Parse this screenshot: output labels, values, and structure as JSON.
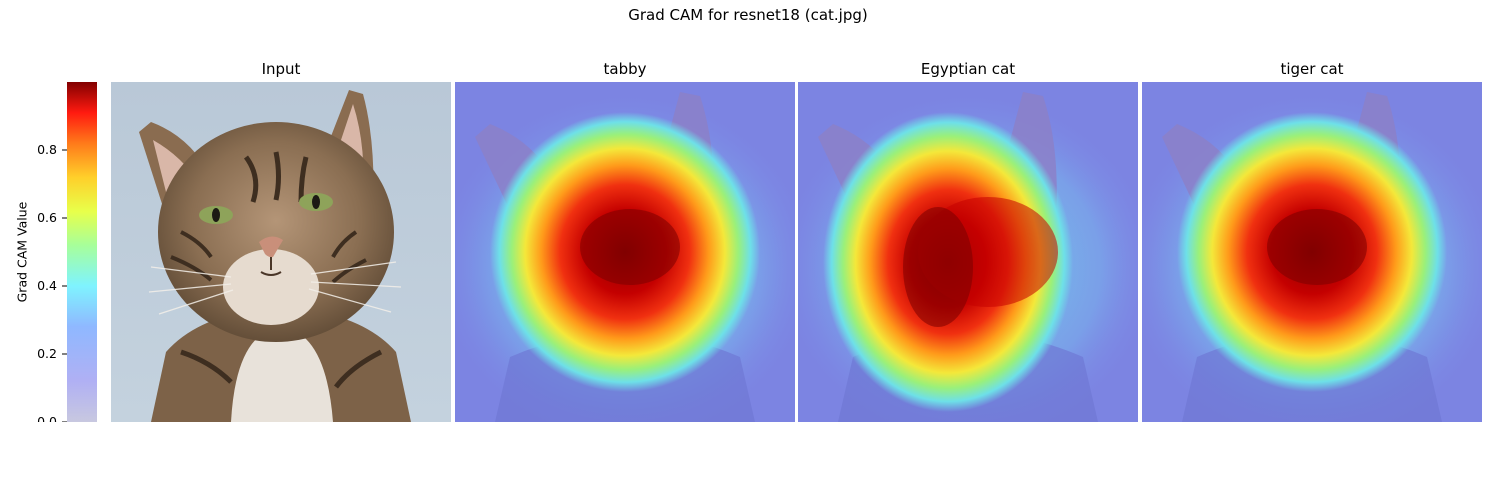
{
  "figure": {
    "title": "Grad CAM for resnet18 (cat.jpg)"
  },
  "panels": [
    {
      "title": "Input",
      "kind": "input"
    },
    {
      "title": "tabby",
      "kind": "cam",
      "hotspot": "round"
    },
    {
      "title": "Egyptian cat",
      "kind": "cam",
      "hotspot": "tall"
    },
    {
      "title": "tiger cat",
      "kind": "cam",
      "hotspot": "round"
    }
  ],
  "colorbar": {
    "label": "Grad CAM Value",
    "ticks": [
      "0.0",
      "0.2",
      "0.4",
      "0.6",
      "0.8"
    ],
    "tick_values": [
      0.0,
      0.2,
      0.4,
      0.6,
      0.8
    ],
    "range": [
      0.0,
      1.0
    ],
    "colormap": "jet"
  },
  "chart_data": {
    "type": "heatmap",
    "title": "Grad CAM for resnet18 (cat.jpg)",
    "panels": [
      "Input",
      "tabby",
      "Egyptian cat",
      "tiger cat"
    ],
    "colorbar_label": "Grad CAM Value",
    "value_range": [
      0.0,
      1.0
    ],
    "colorbar_ticks": [
      0.0,
      0.2,
      0.4,
      0.6,
      0.8
    ]
  }
}
